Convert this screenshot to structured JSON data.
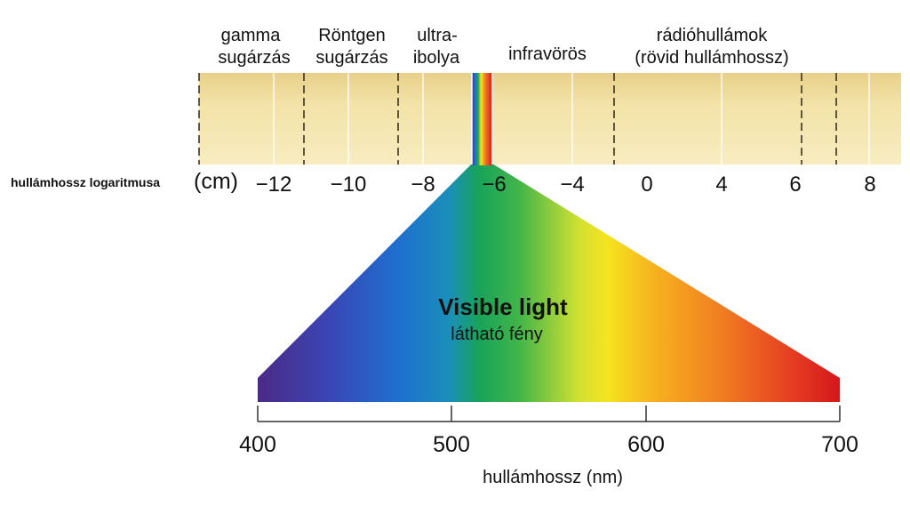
{
  "band_labels": [
    {
      "line1": "gamma",
      "line2": "sugárzás"
    },
    {
      "line1": "Röntgen",
      "line2": "sugárzás"
    },
    {
      "line1": "ultra-",
      "line2": "ibolya"
    },
    {
      "line1": "infravörös",
      "line2": ""
    },
    {
      "line1": "rádióhullámok",
      "line2": "(rövid hullámhossz)"
    }
  ],
  "log_axis": {
    "label": "hullámhossz logaritmusa",
    "unit": "(cm)",
    "ticks": [
      "−12",
      "−10",
      "−8",
      "−6",
      "−4",
      "0",
      "4",
      "6",
      "8"
    ]
  },
  "visible": {
    "title": "Visible light",
    "subtitle": "látható fény"
  },
  "nm_axis": {
    "ticks": [
      "400",
      "500",
      "600",
      "700"
    ],
    "label": "hullámhossz (nm)"
  },
  "colors": {
    "band_fill": "#f3e3a8",
    "band_fill_dark": "#e6cf82",
    "rainbow": [
      "#4a2d8a",
      "#2f4fbf",
      "#1d7bd0",
      "#19a45a",
      "#3bb54a",
      "#f4e21d",
      "#f6a21e",
      "#ee5a24",
      "#d7191c"
    ]
  }
}
